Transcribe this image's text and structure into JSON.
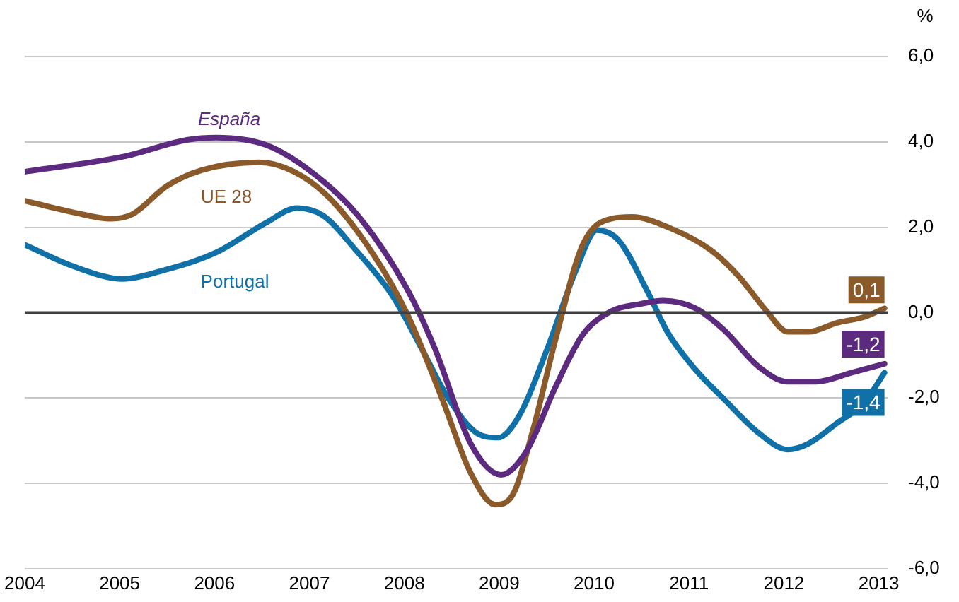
{
  "chart_data": {
    "type": "line",
    "ylabel": "%",
    "xlim": [
      2004,
      2013.1
    ],
    "xticks": [
      2004,
      2005,
      2006,
      2007,
      2008,
      2009,
      2010,
      2011,
      2012,
      2013
    ],
    "ylim": [
      -6,
      6
    ],
    "yticks": [
      {
        "value": -6,
        "label": "-6,0"
      },
      {
        "value": -4,
        "label": "-4,0"
      },
      {
        "value": -2,
        "label": "-2,0"
      },
      {
        "value": 0,
        "label": "0,0"
      },
      {
        "value": 2,
        "label": "2,0"
      },
      {
        "value": 4,
        "label": "4,0"
      },
      {
        "value": 6,
        "label": "6,0"
      }
    ],
    "grid": "y",
    "legend": false,
    "marker": "none",
    "line_style": "solid",
    "ref_lines": [
      {
        "axis": "y",
        "value": 0,
        "color": "#404040"
      }
    ],
    "series": [
      {
        "name": "España",
        "color": "#5c2a7e",
        "x": [
          2004,
          2005.03,
          2005.72,
          2006.02,
          2006.54,
          2007.02,
          2007.51,
          2008.03,
          2008.32,
          2008.7,
          2009.02,
          2009.29,
          2009.59,
          2009.88,
          2010.18,
          2010.48,
          2010.73,
          2011.07,
          2011.37,
          2011.74,
          2012.04,
          2012.34,
          2012.71,
          2013.06
        ],
        "values": [
          3.3,
          3.65,
          4.05,
          4.1,
          3.93,
          3.3,
          2.28,
          0.55,
          -0.83,
          -3.07,
          -3.8,
          -3.24,
          -1.76,
          -0.52,
          0.03,
          0.2,
          0.28,
          0.1,
          -0.41,
          -1.28,
          -1.62,
          -1.62,
          -1.41,
          -1.2
        ],
        "value_labels": [
          null,
          null,
          null,
          null,
          null,
          null,
          null,
          null,
          null,
          null,
          null,
          null,
          null,
          null,
          null,
          null,
          null,
          null,
          null,
          null,
          null,
          null,
          null,
          "-1,2"
        ]
      },
      {
        "name": "UE 28",
        "color": "#8b5a2b",
        "x": [
          2004,
          2004.53,
          2004.91,
          2005.13,
          2005.5,
          2005.87,
          2006.47,
          2006.84,
          2007.21,
          2007.66,
          2008.03,
          2008.4,
          2008.7,
          2008.96,
          2009.14,
          2009.36,
          2009.59,
          2009.88,
          2010.18,
          2010.4,
          2010.78,
          2011.22,
          2011.52,
          2011.82,
          2012.04,
          2012.26,
          2012.56,
          2012.85,
          2013.06
        ],
        "values": [
          2.62,
          2.34,
          2.2,
          2.3,
          2.97,
          3.34,
          3.52,
          3.3,
          2.69,
          1.41,
          -0.03,
          -2.03,
          -3.76,
          -4.5,
          -4.28,
          -2.72,
          -0.66,
          1.59,
          2.2,
          2.24,
          2.0,
          1.48,
          0.86,
          0.03,
          -0.45,
          -0.45,
          -0.24,
          -0.1,
          0.1
        ],
        "value_labels": [
          null,
          null,
          null,
          null,
          null,
          null,
          null,
          null,
          null,
          null,
          null,
          null,
          null,
          null,
          null,
          null,
          null,
          null,
          null,
          null,
          null,
          null,
          null,
          null,
          null,
          null,
          null,
          null,
          "0,1"
        ]
      },
      {
        "name": "Portugal",
        "color": "#1071a8",
        "x": [
          2004,
          2004.53,
          2005.03,
          2005.43,
          2006.02,
          2006.54,
          2006.87,
          2007.14,
          2007.51,
          2007.88,
          2008.18,
          2008.47,
          2008.77,
          2008.99,
          2009.22,
          2009.51,
          2009.81,
          2010.03,
          2010.26,
          2010.55,
          2010.78,
          2011.07,
          2011.37,
          2011.74,
          2012.04,
          2012.26,
          2012.56,
          2012.85,
          2013.06
        ],
        "values": [
          1.59,
          1.07,
          0.79,
          0.97,
          1.41,
          2.1,
          2.45,
          2.28,
          1.41,
          0.38,
          -0.83,
          -2.03,
          -2.83,
          -2.93,
          -2.38,
          -0.83,
          1.0,
          1.93,
          1.69,
          0.55,
          -0.48,
          -1.34,
          -2.03,
          -2.83,
          -3.21,
          -3.07,
          -2.59,
          -2.1,
          -1.41
        ],
        "value_labels": [
          null,
          null,
          null,
          null,
          null,
          null,
          null,
          null,
          null,
          null,
          null,
          null,
          null,
          null,
          null,
          null,
          null,
          null,
          null,
          null,
          null,
          null,
          null,
          null,
          null,
          null,
          null,
          null,
          "-1,4"
        ]
      }
    ]
  }
}
